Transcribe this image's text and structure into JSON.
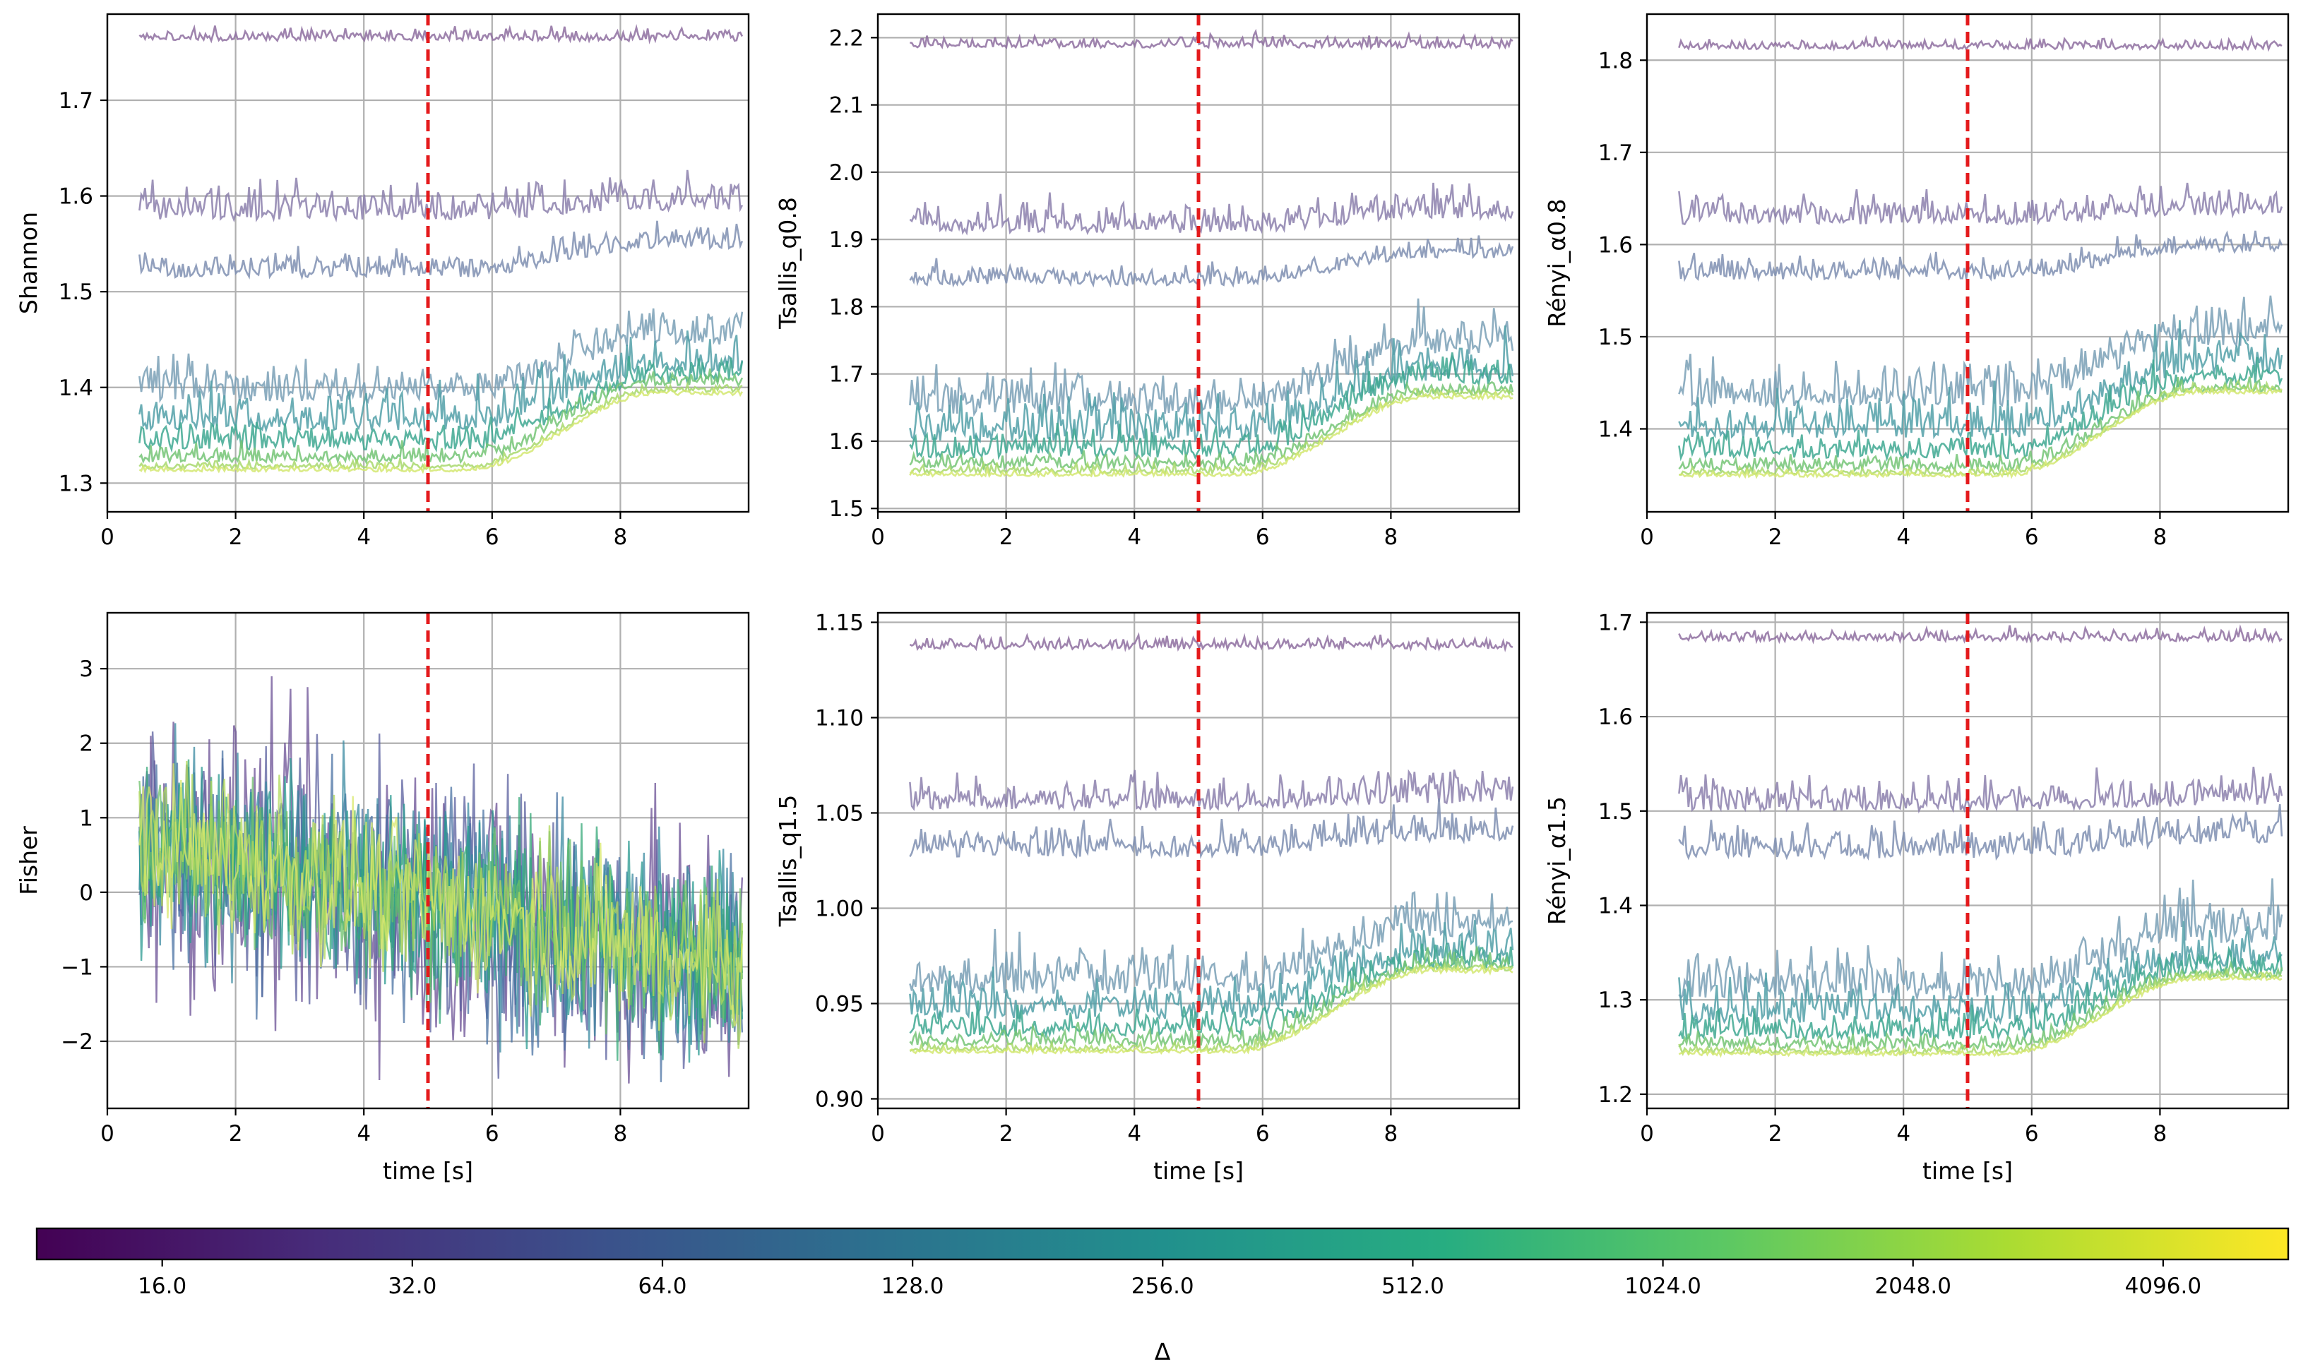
{
  "chart_data": [
    {
      "type": "line",
      "panel": "top-left",
      "title": "",
      "xlabel": "",
      "ylabel": "Shannon",
      "xlim": [
        0,
        10
      ],
      "ylim": [
        1.27,
        1.79
      ],
      "xticks": [
        0,
        2,
        4,
        6,
        8
      ],
      "yticks": [
        1.3,
        1.4,
        1.5,
        1.6,
        1.7
      ],
      "ytick_labels": [
        "1.3",
        "1.4",
        "1.5",
        "1.6",
        "1.7"
      ],
      "xtick_labels": [
        "0",
        "2",
        "4",
        "6",
        "8"
      ],
      "grid": true,
      "event_time": 5,
      "series": [
        {
          "name": "Δ=16",
          "color": "#8e6fa0",
          "base": 1.762,
          "shift": 0.0,
          "noise": 0.006
        },
        {
          "name": "Δ=32",
          "color": "#8c80ad",
          "base": 1.575,
          "shift": 0.01,
          "noise": 0.017
        },
        {
          "name": "Δ=64",
          "color": "#7f8fb1",
          "base": 1.515,
          "shift": 0.03,
          "noise": 0.013
        },
        {
          "name": "Δ=128",
          "color": "#7aa0b6",
          "base": 1.385,
          "shift": 0.06,
          "noise": 0.02
        },
        {
          "name": "Δ=256",
          "color": "#52a0a8",
          "base": 1.355,
          "shift": 0.06,
          "noise": 0.02
        },
        {
          "name": "Δ=512",
          "color": "#3fa892",
          "base": 1.335,
          "shift": 0.07,
          "noise": 0.013
        },
        {
          "name": "Δ=1024",
          "color": "#74c476",
          "base": 1.322,
          "shift": 0.08,
          "noise": 0.008
        },
        {
          "name": "Δ=2048",
          "color": "#a8d86c",
          "base": 1.315,
          "shift": 0.08,
          "noise": 0.004
        },
        {
          "name": "Δ=4096",
          "color": "#d3e771",
          "base": 1.312,
          "shift": 0.08,
          "noise": 0.003
        }
      ]
    },
    {
      "type": "line",
      "panel": "top-middle",
      "title": "",
      "xlabel": "",
      "ylabel": "Tsallis_q0.8",
      "xlim": [
        0,
        10
      ],
      "ylim": [
        1.495,
        2.235
      ],
      "xticks": [
        0,
        2,
        4,
        6,
        8
      ],
      "yticks": [
        1.5,
        1.6,
        1.7,
        1.8,
        1.9,
        2.0,
        2.1,
        2.2
      ],
      "ytick_labels": [
        "1.5",
        "1.6",
        "1.7",
        "1.8",
        "1.9",
        "2.0",
        "2.1",
        "2.2"
      ],
      "xtick_labels": [
        "0",
        "2",
        "4",
        "6",
        "8"
      ],
      "grid": true,
      "event_time": 5,
      "series": [
        {
          "name": "Δ=16",
          "color": "#8e6fa0",
          "base": 2.185,
          "shift": 0.0,
          "noise": 0.008
        },
        {
          "name": "Δ=32",
          "color": "#8c80ad",
          "base": 1.91,
          "shift": 0.02,
          "noise": 0.02
        },
        {
          "name": "Δ=64",
          "color": "#7f8fb1",
          "base": 1.832,
          "shift": 0.04,
          "noise": 0.015
        },
        {
          "name": "Δ=128",
          "color": "#7aa0b6",
          "base": 1.64,
          "shift": 0.09,
          "noise": 0.03
        },
        {
          "name": "Δ=256",
          "color": "#52a0a8",
          "base": 1.6,
          "shift": 0.09,
          "noise": 0.03
        },
        {
          "name": "Δ=512",
          "color": "#3fa892",
          "base": 1.575,
          "shift": 0.11,
          "noise": 0.02
        },
        {
          "name": "Δ=1024",
          "color": "#74c476",
          "base": 1.56,
          "shift": 0.11,
          "noise": 0.01
        },
        {
          "name": "Δ=2048",
          "color": "#a8d86c",
          "base": 1.552,
          "shift": 0.115,
          "noise": 0.006
        },
        {
          "name": "Δ=4096",
          "color": "#d3e771",
          "base": 1.548,
          "shift": 0.115,
          "noise": 0.004
        }
      ]
    },
    {
      "type": "line",
      "panel": "top-right",
      "title": "",
      "xlabel": "",
      "ylabel": "Rényi_α0.8",
      "xlim": [
        0,
        10
      ],
      "ylim": [
        1.31,
        1.85
      ],
      "xticks": [
        0,
        2,
        4,
        6,
        8
      ],
      "yticks": [
        1.4,
        1.5,
        1.6,
        1.7,
        1.8
      ],
      "ytick_labels": [
        "1.4",
        "1.5",
        "1.6",
        "1.7",
        "1.8"
      ],
      "xtick_labels": [
        "0",
        "2",
        "4",
        "6",
        "8"
      ],
      "grid": true,
      "event_time": 5,
      "series": [
        {
          "name": "Δ=16",
          "color": "#8e6fa0",
          "base": 1.812,
          "shift": 0.0,
          "noise": 0.005
        },
        {
          "name": "Δ=32",
          "color": "#8c80ad",
          "base": 1.622,
          "shift": 0.01,
          "noise": 0.015
        },
        {
          "name": "Δ=64",
          "color": "#7f8fb1",
          "base": 1.562,
          "shift": 0.03,
          "noise": 0.012
        },
        {
          "name": "Δ=128",
          "color": "#7aa0b6",
          "base": 1.425,
          "shift": 0.065,
          "noise": 0.022
        },
        {
          "name": "Δ=256",
          "color": "#52a0a8",
          "base": 1.39,
          "shift": 0.07,
          "noise": 0.022
        },
        {
          "name": "Δ=512",
          "color": "#3fa892",
          "base": 1.368,
          "shift": 0.08,
          "noise": 0.014
        },
        {
          "name": "Δ=1024",
          "color": "#74c476",
          "base": 1.355,
          "shift": 0.085,
          "noise": 0.008
        },
        {
          "name": "Δ=2048",
          "color": "#a8d86c",
          "base": 1.35,
          "shift": 0.09,
          "noise": 0.004
        },
        {
          "name": "Δ=4096",
          "color": "#d3e771",
          "base": 1.348,
          "shift": 0.09,
          "noise": 0.003
        }
      ]
    },
    {
      "type": "line",
      "panel": "bottom-left",
      "title": "",
      "xlabel": "time [s]",
      "ylabel": "Fisher",
      "xlim": [
        0,
        10
      ],
      "ylim": [
        -2.9,
        3.75
      ],
      "xticks": [
        0,
        2,
        4,
        6,
        8
      ],
      "yticks": [
        -2,
        -1,
        0,
        1,
        2,
        3
      ],
      "ytick_labels": [
        "−2",
        "−1",
        "0",
        "1",
        "2",
        "3"
      ],
      "xtick_labels": [
        "0",
        "2",
        "4",
        "6",
        "8"
      ],
      "grid": true,
      "event_time": 5,
      "series": [
        {
          "name": "Δ=16",
          "color": "#6a4f94",
          "base": 0.7,
          "shift": -1.7,
          "noise": 0.95
        },
        {
          "name": "Δ=32",
          "color": "#5a5f9e",
          "base": 0.7,
          "shift": -1.7,
          "noise": 0.85
        },
        {
          "name": "Δ=64",
          "color": "#4a72a3",
          "base": 0.7,
          "shift": -1.7,
          "noise": 0.75
        },
        {
          "name": "Δ=128",
          "color": "#3a8aa0",
          "base": 0.7,
          "shift": -1.7,
          "noise": 0.7
        },
        {
          "name": "Δ=256",
          "color": "#2a9a90",
          "base": 0.7,
          "shift": -1.7,
          "noise": 0.65
        },
        {
          "name": "Δ=512",
          "color": "#35a878",
          "base": 0.7,
          "shift": -1.7,
          "noise": 0.6
        },
        {
          "name": "Δ=1024",
          "color": "#6cc06a",
          "base": 0.7,
          "shift": -1.7,
          "noise": 0.55
        },
        {
          "name": "Δ=2048",
          "color": "#b0d85a",
          "base": 0.7,
          "shift": -1.7,
          "noise": 0.5
        },
        {
          "name": "Δ=4096",
          "color": "#d8e86a",
          "base": 0.7,
          "shift": -1.7,
          "noise": 0.5
        }
      ]
    },
    {
      "type": "line",
      "panel": "bottom-middle",
      "title": "",
      "xlabel": "time [s]",
      "ylabel": "Tsallis_q1.5",
      "xlim": [
        0,
        10
      ],
      "ylim": [
        0.895,
        1.155
      ],
      "xticks": [
        0,
        2,
        4,
        6,
        8
      ],
      "yticks": [
        0.9,
        0.95,
        1.0,
        1.05,
        1.1,
        1.15
      ],
      "ytick_labels": [
        "0.90",
        "0.95",
        "1.00",
        "1.05",
        "1.10",
        "1.15"
      ],
      "xtick_labels": [
        "0",
        "2",
        "4",
        "6",
        "8"
      ],
      "grid": true,
      "event_time": 5,
      "series": [
        {
          "name": "Δ=16",
          "color": "#8e6fa0",
          "base": 1.136,
          "shift": 0.0,
          "noise": 0.003
        },
        {
          "name": "Δ=32",
          "color": "#8c80ad",
          "base": 1.052,
          "shift": 0.003,
          "noise": 0.008
        },
        {
          "name": "Δ=64",
          "color": "#7f8fb1",
          "base": 1.027,
          "shift": 0.008,
          "noise": 0.008
        },
        {
          "name": "Δ=128",
          "color": "#7aa0b6",
          "base": 0.955,
          "shift": 0.03,
          "noise": 0.012
        },
        {
          "name": "Δ=256",
          "color": "#52a0a8",
          "base": 0.942,
          "shift": 0.03,
          "noise": 0.01
        },
        {
          "name": "Δ=512",
          "color": "#3fa892",
          "base": 0.933,
          "shift": 0.035,
          "noise": 0.007
        },
        {
          "name": "Δ=1024",
          "color": "#74c476",
          "base": 0.928,
          "shift": 0.04,
          "noise": 0.004
        },
        {
          "name": "Δ=2048",
          "color": "#a8d86c",
          "base": 0.925,
          "shift": 0.042,
          "noise": 0.002
        },
        {
          "name": "Δ=4096",
          "color": "#d3e771",
          "base": 0.924,
          "shift": 0.042,
          "noise": 0.0015
        }
      ]
    },
    {
      "type": "line",
      "panel": "bottom-right",
      "title": "",
      "xlabel": "time [s]",
      "ylabel": "Rényi_α1.5",
      "xlim": [
        0,
        10
      ],
      "ylim": [
        1.185,
        1.71
      ],
      "xticks": [
        0,
        2,
        4,
        6,
        8
      ],
      "yticks": [
        1.2,
        1.3,
        1.4,
        1.5,
        1.6,
        1.7
      ],
      "ytick_labels": [
        "1.2",
        "1.3",
        "1.4",
        "1.5",
        "1.6",
        "1.7"
      ],
      "xtick_labels": [
        "0",
        "2",
        "4",
        "6",
        "8"
      ],
      "grid": true,
      "event_time": 5,
      "series": [
        {
          "name": "Δ=16",
          "color": "#8e6fa0",
          "base": 1.68,
          "shift": 0.0,
          "noise": 0.006
        },
        {
          "name": "Δ=32",
          "color": "#8c80ad",
          "base": 1.5,
          "shift": 0.005,
          "noise": 0.016
        },
        {
          "name": "Δ=64",
          "color": "#7f8fb1",
          "base": 1.45,
          "shift": 0.015,
          "noise": 0.016
        },
        {
          "name": "Δ=128",
          "color": "#7aa0b6",
          "base": 1.3,
          "shift": 0.06,
          "noise": 0.025
        },
        {
          "name": "Δ=256",
          "color": "#52a0a8",
          "base": 1.275,
          "shift": 0.06,
          "noise": 0.02
        },
        {
          "name": "Δ=512",
          "color": "#3fa892",
          "base": 1.258,
          "shift": 0.07,
          "noise": 0.014
        },
        {
          "name": "Δ=1024",
          "color": "#74c476",
          "base": 1.248,
          "shift": 0.075,
          "noise": 0.007
        },
        {
          "name": "Δ=2048",
          "color": "#a8d86c",
          "base": 1.243,
          "shift": 0.08,
          "noise": 0.004
        },
        {
          "name": "Δ=4096",
          "color": "#d3e771",
          "base": 1.241,
          "shift": 0.08,
          "noise": 0.003
        }
      ]
    }
  ],
  "colorbar": {
    "label": "Δ",
    "scale": "log2",
    "range": [
      11.3,
      5793
    ],
    "ticks": [
      16,
      32,
      64,
      128,
      256,
      512,
      1024,
      2048,
      4096
    ],
    "tick_labels": [
      "16.0",
      "32.0",
      "64.0",
      "128.0",
      "256.0",
      "512.0",
      "1024.0",
      "2048.0",
      "4096.0"
    ],
    "colormap": [
      "#440154",
      "#472c7a",
      "#3b518b",
      "#2c718e",
      "#21908d",
      "#27ad81",
      "#5cc863",
      "#aadc32",
      "#fde725"
    ]
  },
  "series_time_range": [
    0.5,
    9.9
  ],
  "series_samples": 320,
  "transition_window": [
    5.6,
    8.6
  ]
}
